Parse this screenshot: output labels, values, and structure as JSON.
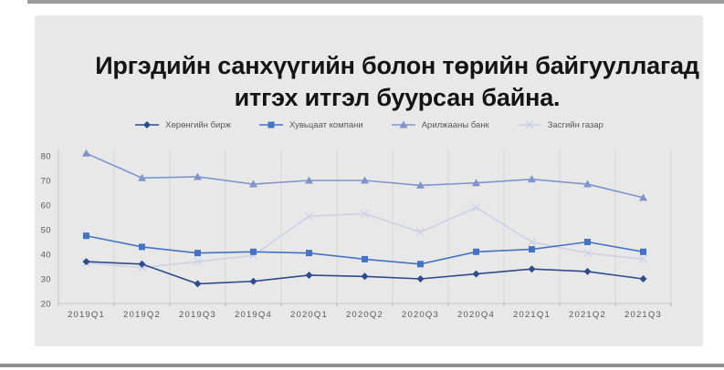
{
  "page": {
    "title": {
      "line1": "Иргэдийн санхүүгийн болон төрийн байгууллагад",
      "line2": "итгэх итгэл буурсан байна."
    }
  },
  "chart_data": {
    "type": "line",
    "title": "Иргэдийн санхүүгийн болон төрийн байгууллагад итгэх итгэл буурсан байна.",
    "categories": [
      "2019Q1",
      "2019Q2",
      "2019Q3",
      "2019Q4",
      "2020Q1",
      "2020Q2",
      "2020Q3",
      "2020Q4",
      "2021Q1",
      "2021Q2",
      "2021Q3"
    ],
    "ylim": [
      20,
      80
    ],
    "yticks": [
      20,
      30,
      40,
      50,
      60,
      70,
      80
    ],
    "grid": "vertical-only",
    "legend_position": "top",
    "background_color": "#e8e8e8",
    "gridline_color": "#d6d6d6",
    "axis_color": "#c9c9c9",
    "label_color": "#595959",
    "series": [
      {
        "name": "Хөрөнгийн бирж",
        "marker": "diamond",
        "color": "#2e4b8c",
        "values": [
          37,
          36,
          28,
          29,
          31.5,
          31,
          30,
          32,
          34,
          33,
          30
        ]
      },
      {
        "name": "Хувьцаат компани",
        "marker": "square",
        "color": "#4472c4",
        "values": [
          47.5,
          43,
          40.5,
          41,
          40.5,
          38,
          36,
          41,
          42,
          45,
          41
        ]
      },
      {
        "name": "Арилжааны банк",
        "marker": "triangle",
        "color": "#8094cb",
        "values": [
          81,
          71,
          71.5,
          68.5,
          70,
          70,
          68,
          69,
          70.5,
          68.5,
          63
        ]
      },
      {
        "name": "Засгийн газар",
        "marker": "x",
        "color": "#ccd1e5",
        "values": [
          36.5,
          34.5,
          37,
          39.5,
          55.5,
          56.5,
          49,
          59,
          45,
          40.5,
          38
        ]
      }
    ]
  }
}
